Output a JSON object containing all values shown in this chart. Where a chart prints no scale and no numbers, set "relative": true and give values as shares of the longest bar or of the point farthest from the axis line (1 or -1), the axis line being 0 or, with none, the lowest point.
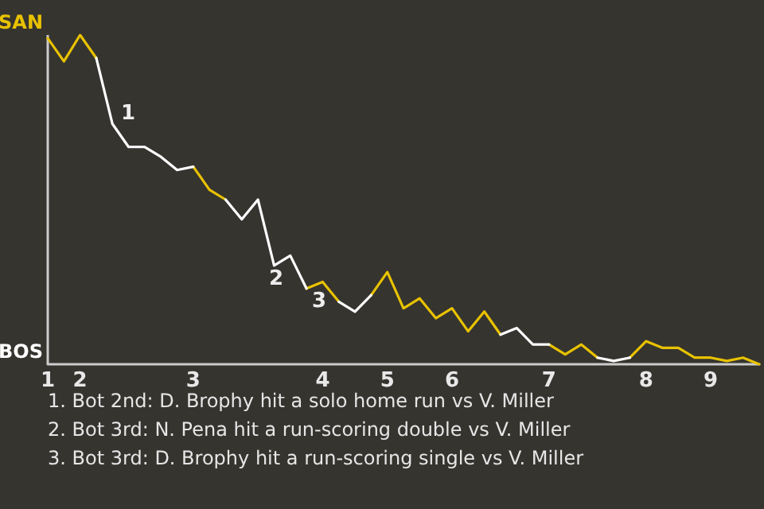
{
  "chart_data": {
    "type": "line",
    "relative": true,
    "categories": [
      "1",
      null,
      "2",
      null,
      null,
      null,
      null,
      null,
      null,
      "3",
      null,
      null,
      null,
      null,
      null,
      null,
      null,
      "4",
      null,
      null,
      null,
      "5",
      null,
      null,
      null,
      "6",
      null,
      null,
      null,
      null,
      null,
      "7",
      null,
      null,
      null,
      null,
      null,
      "8",
      null,
      null,
      null,
      "9",
      null,
      null,
      null
    ],
    "series": [
      {
        "color": "#e8c200",
        "values": [
          0.99,
          0.92,
          1,
          0.93,
          null,
          null,
          null,
          null,
          null,
          0.6,
          0.53,
          0.5,
          null,
          null,
          null,
          null,
          0.23,
          0.25,
          0.19,
          null,
          0.21,
          0.28,
          0.17,
          0.2,
          0.14,
          0.17,
          0.1,
          0.16,
          0.09,
          null,
          null,
          0.06,
          0.03,
          0.06,
          0.02,
          null,
          0.02,
          0.07,
          0.05,
          0.05,
          0.02,
          0.02,
          0.01,
          0.02,
          0
        ]
      },
      {
        "color": "#ffffff",
        "values": [
          null,
          null,
          null,
          0.93,
          0.73,
          0.66,
          0.66,
          0.63,
          0.59,
          0.6,
          null,
          0.5,
          0.44,
          0.5,
          0.3,
          0.33,
          0.23,
          null,
          0.19,
          0.16,
          0.21,
          null,
          null,
          null,
          null,
          null,
          null,
          null,
          0.09,
          0.11,
          0.06,
          0.06,
          null,
          null,
          0.02,
          0.01,
          0.02,
          null,
          null,
          null,
          null,
          null,
          null,
          null,
          null
        ]
      }
    ],
    "marker": "none",
    "annotations": [
      "SAN",
      "BOS",
      "1",
      "2",
      "3",
      "1. Bot 2nd: D. Brophy hit a solo home run vs V. Miller",
      "2. Bot 3rd: N. Pena hit a run-scoring double vs V. Miller",
      "3. Bot 3rd: D. Brophy hit a run-scoring single vs V. Miller"
    ]
  }
}
